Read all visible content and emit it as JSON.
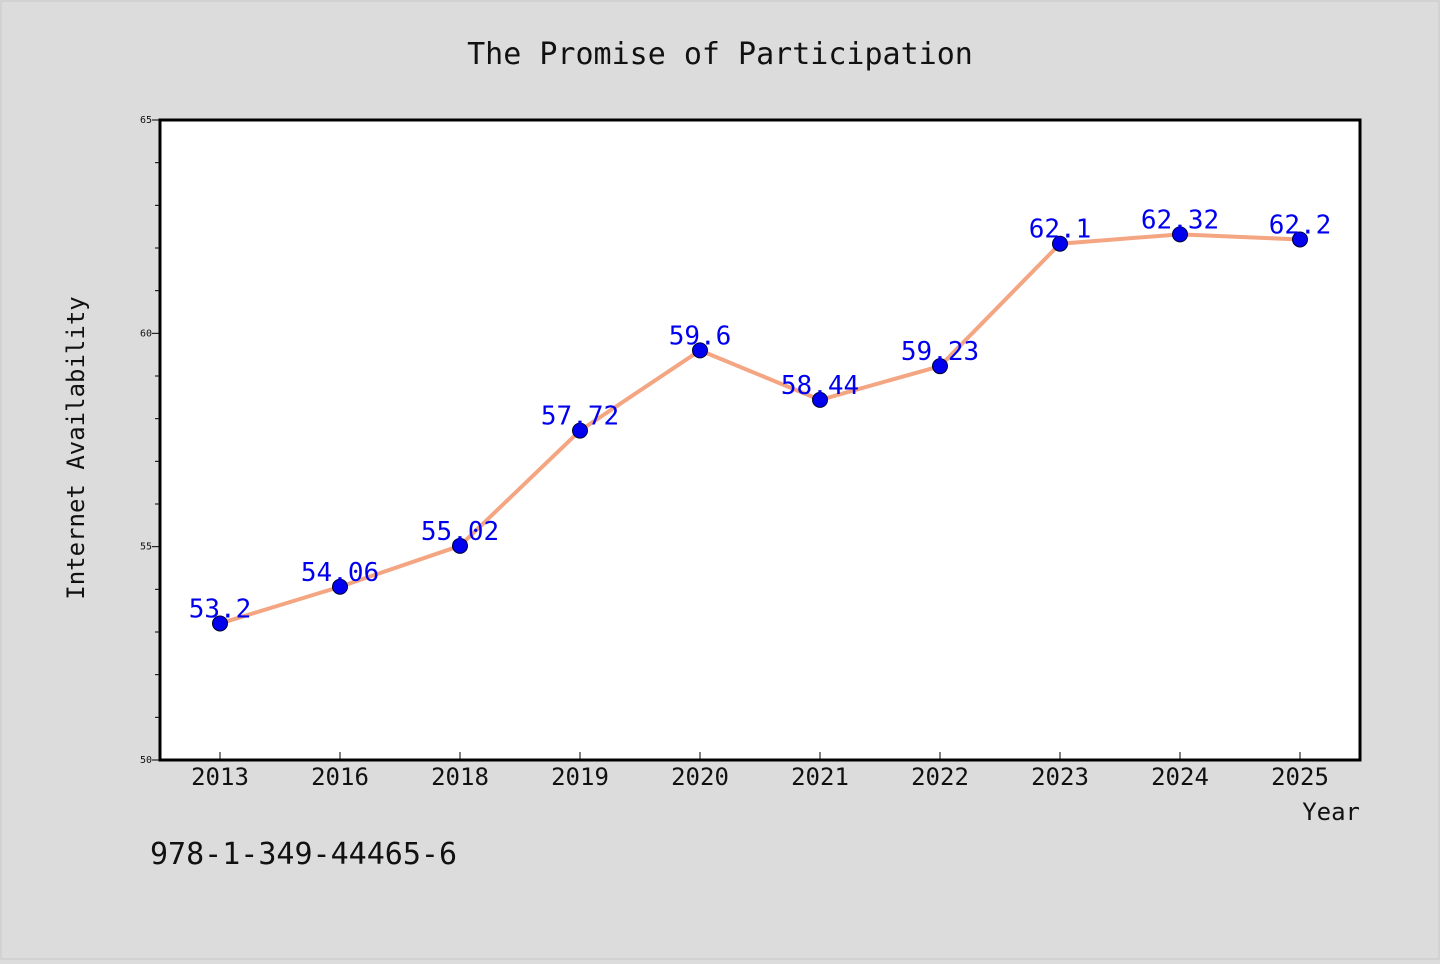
{
  "chart_data": {
    "type": "line",
    "title": "The Promise of Participation",
    "xlabel": "Year",
    "ylabel": "Internet Availability",
    "categories": [
      "2013",
      "2016",
      "2018",
      "2019",
      "2020",
      "2021",
      "2022",
      "2023",
      "2024",
      "2025"
    ],
    "values": [
      53.2,
      54.06,
      55.02,
      57.72,
      59.6,
      58.44,
      59.23,
      62.1,
      62.32,
      62.2
    ],
    "data_labels": [
      "53.2",
      "54.06",
      "55.02",
      "57.72",
      "59.6",
      "58.44",
      "59.23",
      "62.1",
      "62.32",
      "62.2"
    ],
    "ylim": [
      50,
      65
    ],
    "yticks": [
      "50",
      "55",
      "60",
      "65"
    ],
    "grid": false,
    "line_color": "#f4a582",
    "marker_color": "#0000ee",
    "label_color": "#0000ee"
  },
  "footer": {
    "isbn": "978-1-349-44465-6"
  }
}
